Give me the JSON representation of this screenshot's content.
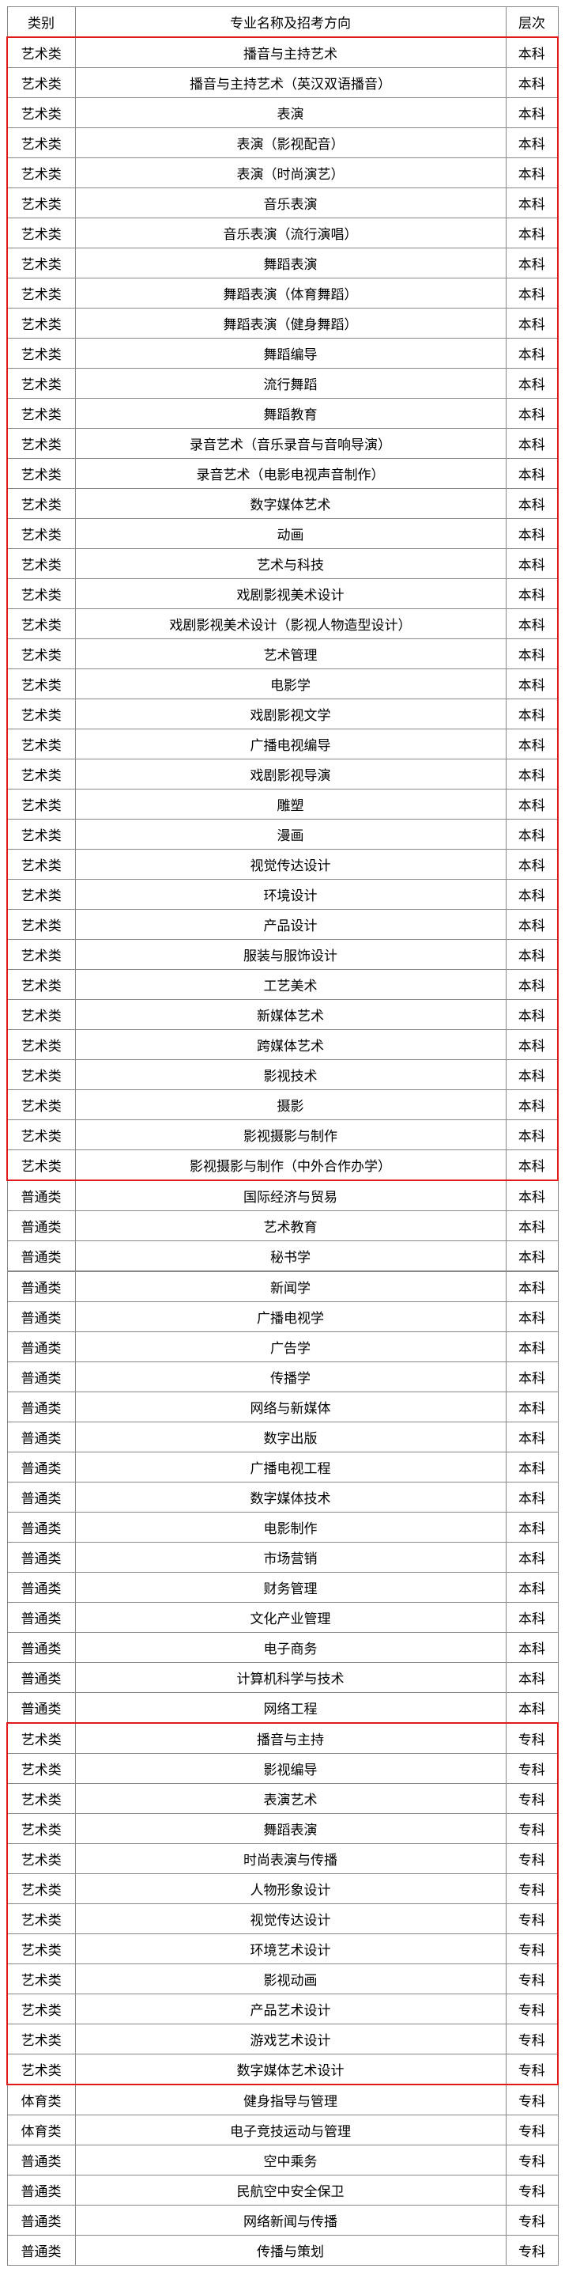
{
  "header": {
    "category": "类别",
    "major": "专业名称及招考方向",
    "level": "层次"
  },
  "sections": [
    {
      "highlight": true,
      "rows": [
        [
          "艺术类",
          "播音与主持艺术",
          "本科"
        ],
        [
          "艺术类",
          "播音与主持艺术（英汉双语播音）",
          "本科"
        ],
        [
          "艺术类",
          "表演",
          "本科"
        ],
        [
          "艺术类",
          "表演（影视配音）",
          "本科"
        ],
        [
          "艺术类",
          "表演（时尚演艺）",
          "本科"
        ],
        [
          "艺术类",
          "音乐表演",
          "本科"
        ],
        [
          "艺术类",
          "音乐表演（流行演唱）",
          "本科"
        ],
        [
          "艺术类",
          "舞蹈表演",
          "本科"
        ],
        [
          "艺术类",
          "舞蹈表演（体育舞蹈）",
          "本科"
        ],
        [
          "艺术类",
          "舞蹈表演（健身舞蹈）",
          "本科"
        ],
        [
          "艺术类",
          "舞蹈编导",
          "本科"
        ],
        [
          "艺术类",
          "流行舞蹈",
          "本科"
        ],
        [
          "艺术类",
          "舞蹈教育",
          "本科"
        ],
        [
          "艺术类",
          "录音艺术（音乐录音与音响导演）",
          "本科"
        ],
        [
          "艺术类",
          "录音艺术（电影电视声音制作）",
          "本科"
        ],
        [
          "艺术类",
          "数字媒体艺术",
          "本科"
        ],
        [
          "艺术类",
          "动画",
          "本科"
        ],
        [
          "艺术类",
          "艺术与科技",
          "本科"
        ],
        [
          "艺术类",
          "戏剧影视美术设计",
          "本科"
        ],
        [
          "艺术类",
          "戏剧影视美术设计（影视人物造型设计）",
          "本科"
        ],
        [
          "艺术类",
          "艺术管理",
          "本科"
        ],
        [
          "艺术类",
          "电影学",
          "本科"
        ],
        [
          "艺术类",
          "戏剧影视文学",
          "本科"
        ],
        [
          "艺术类",
          "广播电视编导",
          "本科"
        ],
        [
          "艺术类",
          "戏剧影视导演",
          "本科"
        ],
        [
          "艺术类",
          "雕塑",
          "本科"
        ],
        [
          "艺术类",
          "漫画",
          "本科"
        ],
        [
          "艺术类",
          "视觉传达设计",
          "本科"
        ],
        [
          "艺术类",
          "环境设计",
          "本科"
        ],
        [
          "艺术类",
          "产品设计",
          "本科"
        ],
        [
          "艺术类",
          "服装与服饰设计",
          "本科"
        ],
        [
          "艺术类",
          "工艺美术",
          "本科"
        ],
        [
          "艺术类",
          "新媒体艺术",
          "本科"
        ],
        [
          "艺术类",
          "跨媒体艺术",
          "本科"
        ],
        [
          "艺术类",
          "影视技术",
          "本科"
        ],
        [
          "艺术类",
          "摄影",
          "本科"
        ],
        [
          "艺术类",
          "影视摄影与制作",
          "本科"
        ],
        [
          "艺术类",
          "影视摄影与制作（中外合作办学）",
          "本科"
        ]
      ]
    },
    {
      "highlight": false,
      "rows": [
        [
          "普通类",
          "国际经济与贸易",
          "本科"
        ],
        [
          "普通类",
          "艺术教育",
          "本科"
        ],
        [
          "普通类",
          "秘书学",
          "本科"
        ]
      ]
    },
    {
      "highlight": false,
      "sep": true,
      "rows": [
        [
          "普通类",
          "新闻学",
          "本科"
        ],
        [
          "普通类",
          "广播电视学",
          "本科"
        ],
        [
          "普通类",
          "广告学",
          "本科"
        ],
        [
          "普通类",
          "传播学",
          "本科"
        ],
        [
          "普通类",
          "网络与新媒体",
          "本科"
        ],
        [
          "普通类",
          "数字出版",
          "本科"
        ],
        [
          "普通类",
          "广播电视工程",
          "本科"
        ],
        [
          "普通类",
          "数字媒体技术",
          "本科"
        ],
        [
          "普通类",
          "电影制作",
          "本科"
        ],
        [
          "普通类",
          "市场营销",
          "本科"
        ],
        [
          "普通类",
          "财务管理",
          "本科"
        ],
        [
          "普通类",
          "文化产业管理",
          "本科"
        ],
        [
          "普通类",
          "电子商务",
          "本科"
        ],
        [
          "普通类",
          "计算机科学与技术",
          "本科"
        ],
        [
          "普通类",
          "网络工程",
          "本科"
        ]
      ]
    },
    {
      "highlight": true,
      "rows": [
        [
          "艺术类",
          "播音与主持",
          "专科"
        ],
        [
          "艺术类",
          "影视编导",
          "专科"
        ],
        [
          "艺术类",
          "表演艺术",
          "专科"
        ],
        [
          "艺术类",
          "舞蹈表演",
          "专科"
        ],
        [
          "艺术类",
          "时尚表演与传播",
          "专科"
        ],
        [
          "艺术类",
          "人物形象设计",
          "专科"
        ],
        [
          "艺术类",
          "视觉传达设计",
          "专科"
        ],
        [
          "艺术类",
          "环境艺术设计",
          "专科"
        ],
        [
          "艺术类",
          "影视动画",
          "专科"
        ],
        [
          "艺术类",
          "产品艺术设计",
          "专科"
        ],
        [
          "艺术类",
          "游戏艺术设计",
          "专科"
        ],
        [
          "艺术类",
          "数字媒体艺术设计",
          "专科"
        ]
      ]
    },
    {
      "highlight": false,
      "rows": [
        [
          "体育类",
          "健身指导与管理",
          "专科"
        ],
        [
          "体育类",
          "电子竞技运动与管理",
          "专科"
        ],
        [
          "普通类",
          "空中乘务",
          "专科"
        ],
        [
          "普通类",
          "民航空中安全保卫",
          "专科"
        ],
        [
          "普通类",
          "网络新闻与传播",
          "专科"
        ],
        [
          "普通类",
          "传播与策划",
          "专科"
        ]
      ]
    }
  ]
}
